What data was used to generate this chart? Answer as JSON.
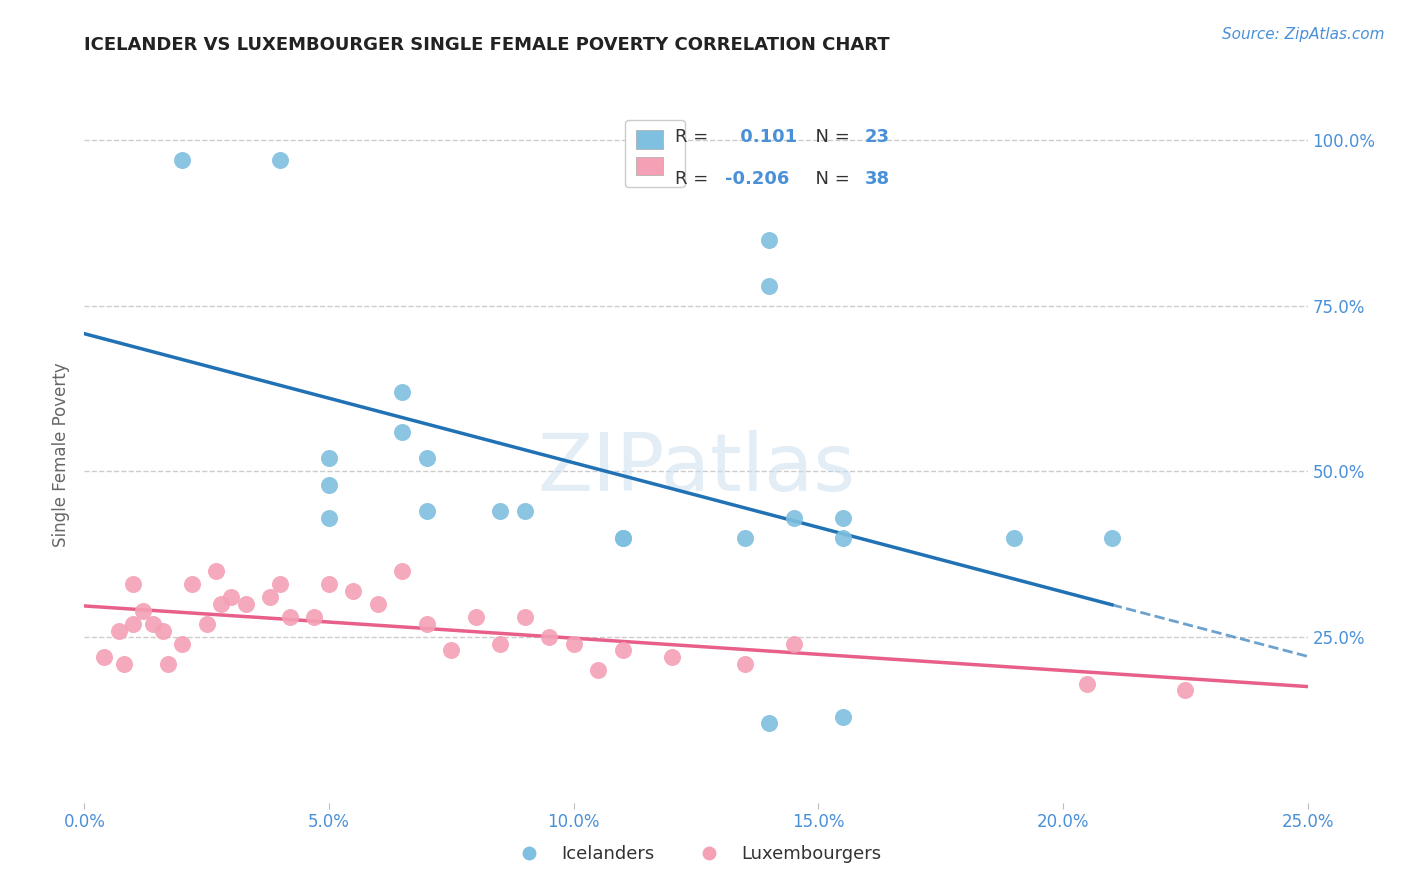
{
  "title": "ICELANDER VS LUXEMBOURGER SINGLE FEMALE POVERTY CORRELATION CHART",
  "source": "Source: ZipAtlas.com",
  "ylabel": "Single Female Poverty",
  "watermark": "ZIPatlas",
  "xlim": [
    0.0,
    0.25
  ],
  "ylim": [
    0.0,
    1.05
  ],
  "xticks": [
    0.0,
    0.05,
    0.1,
    0.15,
    0.2,
    0.25
  ],
  "xtick_labels": [
    "0.0%",
    "5.0%",
    "10.0%",
    "15.0%",
    "20.0%",
    "25.0%"
  ],
  "yticks_right": [
    0.25,
    0.5,
    0.75,
    1.0
  ],
  "ytick_labels_right": [
    "25.0%",
    "50.0%",
    "75.0%",
    "100.0%"
  ],
  "blue_color": "#7fbfdf",
  "pink_color": "#f4a0b5",
  "blue_line_color": "#2171b5",
  "pink_line_color": "#e8608a",
  "legend_blue_r": "0.101",
  "legend_blue_n": "23",
  "legend_pink_r": "-0.206",
  "legend_pink_n": "38",
  "legend_label_icelanders": "Icelanders",
  "legend_label_luxembourgers": "Luxembourgers",
  "icelander_x": [
    0.02,
    0.04,
    0.065,
    0.065,
    0.05,
    0.05,
    0.05,
    0.07,
    0.07,
    0.085,
    0.09,
    0.11,
    0.11,
    0.135,
    0.14,
    0.14,
    0.145,
    0.155,
    0.155,
    0.19,
    0.155,
    0.14,
    0.21
  ],
  "icelander_y": [
    0.97,
    0.97,
    0.62,
    0.56,
    0.52,
    0.48,
    0.43,
    0.44,
    0.52,
    0.44,
    0.44,
    0.4,
    0.4,
    0.4,
    0.78,
    0.85,
    0.43,
    0.4,
    0.43,
    0.4,
    0.13,
    0.12,
    0.4
  ],
  "luxembourger_x": [
    0.004,
    0.007,
    0.008,
    0.01,
    0.01,
    0.012,
    0.014,
    0.016,
    0.017,
    0.02,
    0.022,
    0.025,
    0.027,
    0.028,
    0.03,
    0.033,
    0.038,
    0.04,
    0.042,
    0.047,
    0.05,
    0.055,
    0.06,
    0.065,
    0.07,
    0.075,
    0.08,
    0.085,
    0.09,
    0.095,
    0.1,
    0.105,
    0.11,
    0.12,
    0.135,
    0.145,
    0.205,
    0.225
  ],
  "luxembourger_y": [
    0.22,
    0.26,
    0.21,
    0.33,
    0.27,
    0.29,
    0.27,
    0.26,
    0.21,
    0.24,
    0.33,
    0.27,
    0.35,
    0.3,
    0.31,
    0.3,
    0.31,
    0.33,
    0.28,
    0.28,
    0.33,
    0.32,
    0.3,
    0.35,
    0.27,
    0.23,
    0.28,
    0.24,
    0.28,
    0.25,
    0.24,
    0.2,
    0.23,
    0.22,
    0.21,
    0.24,
    0.18,
    0.17
  ],
  "background_color": "#ffffff",
  "grid_color": "#cccccc",
  "title_color": "#222222",
  "tick_label_color": "#4a90d9",
  "ylabel_color": "#666666",
  "legend_text_color": "#333333",
  "legend_value_color": "#4a90d9"
}
